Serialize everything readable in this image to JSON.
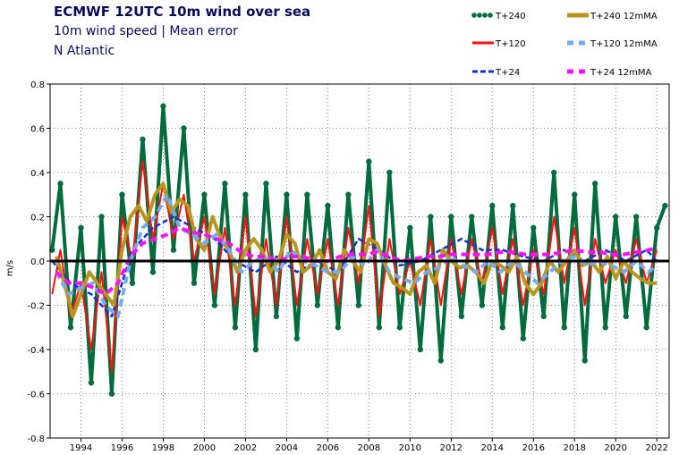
{
  "chart_data": {
    "type": "line",
    "title": "ECMWF 12UTC 10m wind over sea",
    "subtitle": "10m wind speed | Mean error",
    "region": "N Atlantic",
    "ylabel": "m/s",
    "xlim": [
      1992.5,
      2022.6
    ],
    "ylim": [
      -0.8,
      0.8
    ],
    "yticks": [
      -0.8,
      -0.6,
      -0.4,
      -0.2,
      0,
      0.2,
      0.4,
      0.6,
      0.8
    ],
    "xticks": [
      1994,
      1996,
      1998,
      2000,
      2002,
      2004,
      2006,
      2008,
      2010,
      2012,
      2014,
      2016,
      2018,
      2020,
      2022
    ],
    "grid": true,
    "legend_position": "top-right",
    "series": [
      {
        "name": "T+240",
        "style": "dots",
        "color": "#006b3c",
        "x": [
          1992.6,
          1993.0,
          1993.5,
          1994.0,
          1994.5,
          1995.0,
          1995.5,
          1996.0,
          1996.5,
          1997.0,
          1997.5,
          1998.0,
          1998.5,
          1999.0,
          1999.5,
          2000.0,
          2000.5,
          2001.0,
          2001.5,
          2002.0,
          2002.5,
          2003.0,
          2003.5,
          2004.0,
          2004.5,
          2005.0,
          2005.5,
          2006.0,
          2006.5,
          2007.0,
          2007.5,
          2008.0,
          2008.5,
          2009.0,
          2009.5,
          2010.0,
          2010.5,
          2011.0,
          2011.5,
          2012.0,
          2012.5,
          2013.0,
          2013.5,
          2014.0,
          2014.5,
          2015.0,
          2015.5,
          2016.0,
          2016.5,
          2017.0,
          2017.5,
          2018.0,
          2018.5,
          2019.0,
          2019.5,
          2020.0,
          2020.5,
          2021.0,
          2021.5,
          2022.0,
          2022.4
        ],
        "y": [
          0.05,
          0.35,
          -0.3,
          0.15,
          -0.55,
          0.2,
          -0.6,
          0.3,
          -0.1,
          0.55,
          -0.05,
          0.7,
          0.05,
          0.6,
          -0.1,
          0.3,
          -0.2,
          0.35,
          -0.3,
          0.3,
          -0.4,
          0.35,
          -0.25,
          0.3,
          -0.35,
          0.3,
          -0.2,
          0.25,
          -0.3,
          0.3,
          -0.2,
          0.45,
          -0.3,
          0.4,
          -0.3,
          0.15,
          -0.4,
          0.2,
          -0.45,
          0.2,
          -0.25,
          0.2,
          -0.2,
          0.25,
          -0.3,
          0.25,
          -0.35,
          0.15,
          -0.25,
          0.4,
          -0.3,
          0.3,
          -0.45,
          0.35,
          -0.3,
          0.2,
          -0.25,
          0.2,
          -0.3,
          0.15,
          0.25
        ]
      },
      {
        "name": "T+120",
        "style": "line",
        "color": "#ff1010",
        "x": [
          1992.6,
          1993.0,
          1993.5,
          1994.0,
          1994.5,
          1995.0,
          1995.5,
          1996.0,
          1996.5,
          1997.0,
          1997.5,
          1998.0,
          1998.5,
          1999.0,
          1999.5,
          2000.0,
          2000.5,
          2001.0,
          2001.5,
          2002.0,
          2002.5,
          2003.0,
          2003.5,
          2004.0,
          2004.5,
          2005.0,
          2005.5,
          2006.0,
          2006.5,
          2007.0,
          2007.5,
          2008.0,
          2008.5,
          2009.0,
          2009.5,
          2010.0,
          2010.5,
          2011.0,
          2011.5,
          2012.0,
          2012.5,
          2013.0,
          2013.5,
          2014.0,
          2014.5,
          2015.0,
          2015.5,
          2016.0,
          2016.5,
          2017.0,
          2017.5,
          2018.0,
          2018.5,
          2019.0,
          2019.5,
          2020.0,
          2020.5,
          2021.0,
          2021.5,
          2022.0
        ],
        "y": [
          -0.15,
          0.05,
          -0.25,
          -0.1,
          -0.4,
          -0.05,
          -0.5,
          0.2,
          0.0,
          0.45,
          0.1,
          0.35,
          0.1,
          0.3,
          0.0,
          0.2,
          -0.15,
          0.15,
          -0.2,
          0.2,
          -0.25,
          0.1,
          -0.2,
          0.2,
          -0.2,
          0.1,
          -0.15,
          0.1,
          -0.2,
          0.15,
          -0.1,
          0.25,
          -0.25,
          0.1,
          -0.15,
          0.0,
          -0.2,
          0.1,
          -0.2,
          0.1,
          -0.15,
          0.1,
          -0.1,
          0.15,
          -0.15,
          0.1,
          -0.2,
          0.05,
          -0.15,
          0.2,
          -0.1,
          0.15,
          -0.2,
          0.1,
          -0.1,
          0.05,
          -0.1,
          0.1,
          -0.1,
          0.05
        ]
      },
      {
        "name": "T+24",
        "style": "dashed",
        "color": "#1030d0",
        "x": [
          1992.6,
          1993.5,
          1994.5,
          1995.5,
          1996.5,
          1997.5,
          1998.5,
          1999.5,
          2000.5,
          2001.5,
          2002.5,
          2003.5,
          2004.5,
          2005.5,
          2006.5,
          2007.5,
          2008.5,
          2009.5,
          2010.5,
          2011.5,
          2012.5,
          2013.5,
          2014.5,
          2015.5,
          2016.5,
          2017.5,
          2018.5,
          2019.5,
          2020.5,
          2021.5,
          2022.0
        ],
        "y": [
          0.0,
          -0.1,
          -0.15,
          -0.25,
          0.05,
          0.15,
          0.2,
          0.15,
          0.1,
          0.0,
          -0.05,
          0.02,
          -0.05,
          0.0,
          -0.05,
          0.1,
          0.05,
          -0.02,
          0.0,
          0.05,
          0.1,
          0.05,
          0.05,
          0.02,
          0.0,
          0.05,
          0.0,
          0.05,
          0.0,
          0.05,
          0.0
        ]
      },
      {
        "name": "T+240 12mMA",
        "style": "thick",
        "color": "#b8961e",
        "x": [
          1992.8,
          1993.2,
          1993.6,
          1994.0,
          1994.4,
          1994.8,
          1995.2,
          1995.6,
          1996.0,
          1996.4,
          1996.8,
          1997.2,
          1997.6,
          1998.0,
          1998.4,
          1998.8,
          1999.2,
          1999.6,
          2000.0,
          2000.4,
          2000.8,
          2001.2,
          2001.6,
          2002.0,
          2002.4,
          2002.8,
          2003.2,
          2003.6,
          2004.0,
          2004.4,
          2004.8,
          2005.2,
          2005.6,
          2006.0,
          2006.4,
          2006.8,
          2007.2,
          2007.6,
          2008.0,
          2008.4,
          2008.8,
          2009.2,
          2009.6,
          2010.0,
          2010.4,
          2010.8,
          2011.2,
          2011.6,
          2012.0,
          2012.4,
          2012.8,
          2013.2,
          2013.6,
          2014.0,
          2014.4,
          2014.8,
          2015.2,
          2015.6,
          2016.0,
          2016.4,
          2016.8,
          2017.2,
          2017.6,
          2018.0,
          2018.4,
          2018.8,
          2019.2,
          2019.6,
          2020.0,
          2020.4,
          2020.8,
          2021.2,
          2021.6,
          2022.0
        ],
        "y": [
          0.02,
          -0.1,
          -0.25,
          -0.15,
          -0.05,
          -0.1,
          -0.15,
          -0.2,
          0.05,
          0.2,
          0.25,
          0.18,
          0.3,
          0.35,
          0.22,
          0.28,
          0.25,
          0.1,
          0.05,
          0.2,
          0.1,
          0.05,
          -0.05,
          0.05,
          0.1,
          0.05,
          -0.05,
          0.0,
          0.12,
          0.08,
          -0.05,
          -0.02,
          0.05,
          -0.05,
          -0.08,
          0.05,
          0.0,
          -0.05,
          0.1,
          0.08,
          -0.02,
          -0.1,
          -0.12,
          -0.15,
          -0.05,
          -0.02,
          -0.1,
          0.05,
          0.0,
          -0.03,
          -0.02,
          -0.05,
          -0.1,
          0.0,
          -0.02,
          -0.05,
          0.02,
          -0.1,
          -0.15,
          -0.1,
          0.0,
          -0.05,
          0.0,
          0.05,
          -0.02,
          0.0,
          -0.05,
          0.02,
          -0.08,
          0.0,
          -0.05,
          -0.08,
          -0.1,
          -0.1
        ]
      },
      {
        "name": "T+120 12mMA",
        "style": "thick-dashed",
        "color": "#78a8f0",
        "x": [
          1992.8,
          1993.4,
          1994.0,
          1994.6,
          1995.2,
          1995.8,
          1996.4,
          1997.0,
          1997.6,
          1998.2,
          1998.8,
          1999.4,
          2000.0,
          2000.6,
          2001.2,
          2001.8,
          2002.4,
          2003.0,
          2003.6,
          2004.2,
          2004.8,
          2005.4,
          2006.0,
          2006.6,
          2007.2,
          2007.8,
          2008.4,
          2009.0,
          2009.6,
          2010.2,
          2010.8,
          2011.4,
          2012.0,
          2012.6,
          2013.2,
          2013.8,
          2014.4,
          2015.0,
          2015.6,
          2016.2,
          2016.8,
          2017.4,
          2018.0,
          2018.6,
          2019.2,
          2019.8,
          2020.4,
          2021.0,
          2021.6,
          2022.0
        ],
        "y": [
          -0.05,
          -0.15,
          -0.12,
          -0.1,
          -0.2,
          -0.25,
          0.0,
          0.15,
          0.2,
          0.3,
          0.15,
          0.12,
          0.08,
          0.12,
          0.05,
          -0.05,
          0.0,
          0.02,
          -0.05,
          0.05,
          0.0,
          -0.02,
          -0.05,
          -0.05,
          0.02,
          -0.02,
          0.05,
          -0.05,
          -0.08,
          -0.1,
          -0.05,
          -0.03,
          0.02,
          -0.02,
          -0.05,
          0.0,
          -0.05,
          0.0,
          -0.05,
          -0.1,
          -0.05,
          0.0,
          0.02,
          -0.02,
          0.0,
          -0.02,
          -0.05,
          0.0,
          -0.05,
          -0.02
        ]
      },
      {
        "name": "T+24 12mMA",
        "style": "thick-dashed",
        "color": "#ff10ff",
        "x": [
          1992.8,
          1993.4,
          1994.0,
          1994.6,
          1995.2,
          1995.8,
          1996.4,
          1997.0,
          1997.6,
          1998.2,
          1998.8,
          1999.4,
          2000.0,
          2000.6,
          2001.2,
          2001.8,
          2002.4,
          2003.0,
          2003.6,
          2004.2,
          2004.8,
          2005.4,
          2006.0,
          2006.6,
          2007.2,
          2007.8,
          2008.4,
          2009.0,
          2009.6,
          2010.2,
          2010.8,
          2011.4,
          2012.0,
          2012.6,
          2013.2,
          2013.8,
          2014.4,
          2015.0,
          2015.6,
          2016.2,
          2016.8,
          2017.4,
          2018.0,
          2018.6,
          2019.2,
          2019.8,
          2020.4,
          2021.0,
          2021.6,
          2022.0
        ],
        "y": [
          -0.05,
          -0.1,
          -0.1,
          -0.12,
          -0.15,
          -0.1,
          0.02,
          0.08,
          0.1,
          0.12,
          0.15,
          0.13,
          0.12,
          0.1,
          0.08,
          0.04,
          0.02,
          0.02,
          0.0,
          0.02,
          0.02,
          0.0,
          0.0,
          0.02,
          0.03,
          0.03,
          0.04,
          0.02,
          0.0,
          0.01,
          0.02,
          0.02,
          0.03,
          0.03,
          0.03,
          0.03,
          0.04,
          0.04,
          0.03,
          0.03,
          0.03,
          0.04,
          0.05,
          0.04,
          0.04,
          0.03,
          0.03,
          0.04,
          0.05,
          0.06
        ]
      }
    ]
  }
}
